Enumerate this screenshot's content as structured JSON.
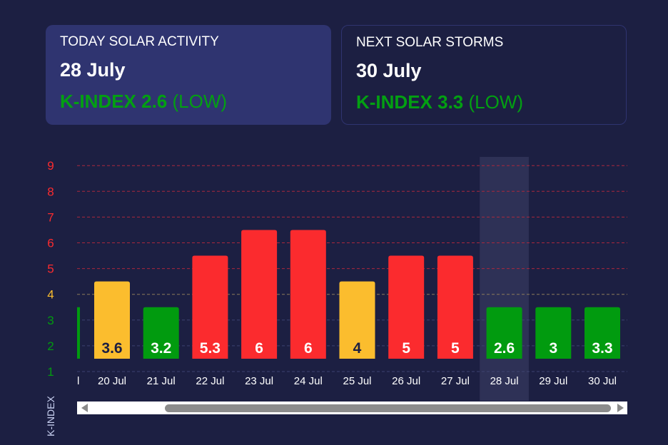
{
  "cards": [
    {
      "title": "TODAY SOLAR ACTIVITY",
      "date": "28 July",
      "k_label": "K-INDEX 2.6",
      "level": "(LOW)"
    },
    {
      "title": "NEXT SOLAR STORMS",
      "date": "30 July",
      "k_label": "K-INDEX 3.3",
      "level": "(LOW)"
    }
  ],
  "colors": {
    "background": "#1c1f42",
    "card": "#2f3470",
    "low": "#019b0f",
    "moderate": "#fbbd2e",
    "high": "#fb2b2e"
  },
  "chart_data": {
    "type": "bar",
    "ylabel": "K-INDEX",
    "ylim": [
      1,
      9
    ],
    "yticks": [
      "1",
      "2",
      "3",
      "4",
      "5",
      "6",
      "7",
      "8",
      "9"
    ],
    "highlight_category": "28 Jul",
    "partial_left_label": "l",
    "categories": [
      "20 Jul",
      "21 Jul",
      "22 Jul",
      "23 Jul",
      "24 Jul",
      "25 Jul",
      "26 Jul",
      "27 Jul",
      "28 Jul",
      "29 Jul",
      "30 Jul"
    ],
    "values": [
      3.6,
      3.2,
      5.3,
      6,
      6,
      4,
      5,
      5,
      2.6,
      3,
      3.3
    ],
    "value_labels": [
      "3.6",
      "3.2",
      "5.3",
      "6",
      "6",
      "4",
      "5",
      "5",
      "2.6",
      "3",
      "3.3"
    ]
  }
}
